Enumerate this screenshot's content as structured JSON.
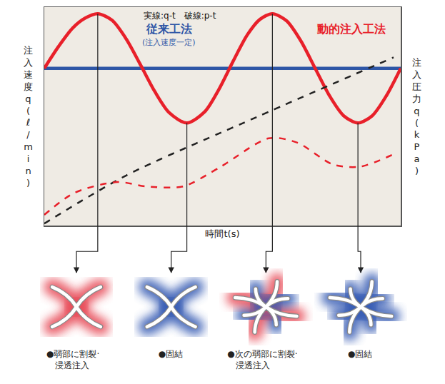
{
  "chart_data": {
    "type": "line",
    "xlabel": "時間t(s)",
    "ylabel": "注入速度q(ℓ/min)",
    "y2label": "注入圧力q(kPa)",
    "xlim": [
      0,
      100
    ],
    "ylim": [
      0,
      100
    ],
    "y2lim": [
      0,
      100
    ],
    "xticks": [],
    "yticks": [],
    "y2ticks": [],
    "tick_labels": false,
    "grid": false,
    "series": [
      {
        "name": "従来工法",
        "color": "#2e56a6",
        "line_style": "solid",
        "axis": "y",
        "x": [
          0,
          100
        ],
        "values": [
          72,
          72
        ]
      },
      {
        "name": "動的注入工法",
        "color": "#e8202a",
        "line_style": "solid",
        "axis": "y",
        "x": [
          0,
          4,
          8,
          11.5,
          15,
          19,
          23,
          27,
          31,
          35,
          40,
          45,
          49,
          53,
          57,
          60.5,
          64,
          68,
          72,
          76,
          80,
          84,
          88,
          92,
          96,
          100
        ],
        "values": [
          72,
          82,
          90.5,
          95,
          97,
          94,
          85.4,
          73.6,
          61.4,
          51.8,
          47,
          52.1,
          62.4,
          75.3,
          87.4,
          94.4,
          97,
          93.7,
          84.5,
          72,
          59.5,
          50.3,
          47,
          50.3,
          59.5,
          72
        ]
      },
      {
        "color": "#222222",
        "line_style": "dashed",
        "axis": "y2",
        "x": [
          0,
          23,
          60,
          98
        ],
        "values": [
          1,
          23,
          50,
          77
        ]
      },
      {
        "color": "#e8202a",
        "line_style": "dashed",
        "axis": "y2",
        "x": [
          0,
          8.4,
          20.5,
          28.5,
          39,
          49.5,
          63,
          71,
          81,
          88.6,
          98.4
        ],
        "values": [
          5,
          15,
          20,
          18,
          18,
          27,
          40,
          38,
          28,
          27,
          33
        ]
      }
    ],
    "annotations": [
      {
        "text": "実線:q-t　破線:p-t",
        "x": 38,
        "y": 99,
        "color": "#111111"
      },
      {
        "text": "従来工法",
        "x": 35,
        "y": 90,
        "color": "#2e56a6"
      },
      {
        "text": "(注入速度一定)",
        "x": 35,
        "y": 84,
        "color": "#2e56a6"
      },
      {
        "text": "動的注入工法",
        "x": 86,
        "y": 90,
        "color": "#e8202a"
      }
    ],
    "events": [
      {
        "x": 15,
        "label": [
          "●弱部に割裂·",
          "浸透注入"
        ],
        "colors": [
          "#e8505b"
        ]
      },
      {
        "x": 40,
        "label": [
          "●固結"
        ],
        "colors": [
          "#3a5fb5"
        ]
      },
      {
        "x": 64,
        "label": [
          "●次の弱部に割裂·",
          "浸透注入"
        ],
        "colors": [
          "#e8505b",
          "#3a5fb5"
        ]
      },
      {
        "x": 88,
        "label": [
          "●固結"
        ],
        "colors": [
          "#3a5fb5"
        ]
      }
    ]
  }
}
